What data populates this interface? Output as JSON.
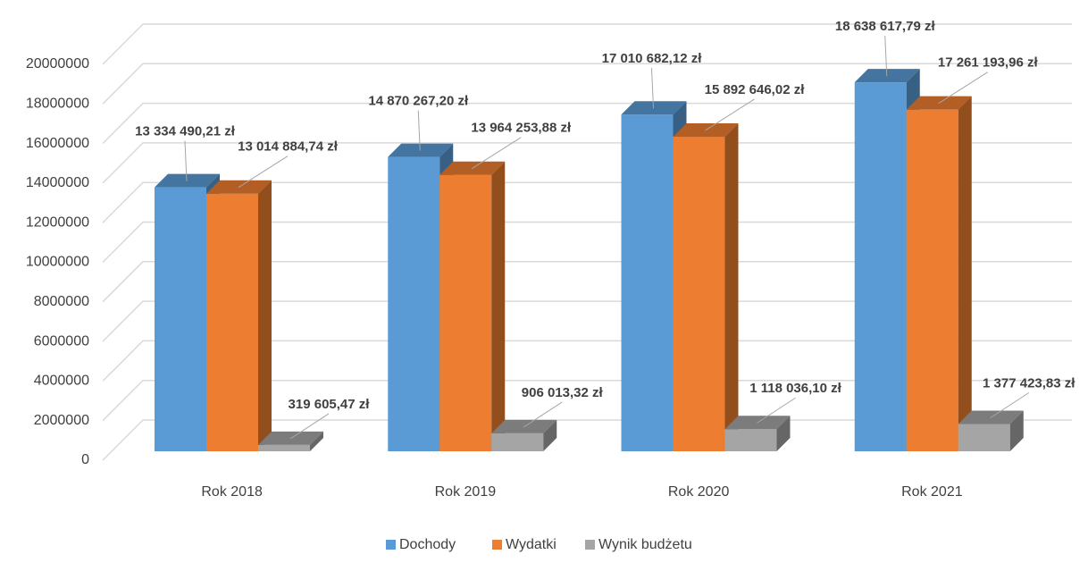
{
  "chart_data": {
    "type": "bar3d",
    "categories": [
      "Rok 2018",
      "Rok 2019",
      "Rok 2020",
      "Rok 2021"
    ],
    "series": [
      {
        "name": "Dochody",
        "color": "#5b9bd5",
        "values": [
          13334490.21,
          14870267.2,
          17010682.12,
          18638617.79
        ],
        "value_labels": [
          "13 334 490,21 zł",
          "14 870 267,20 zł",
          "17 010 682,12 zł",
          "18 638 617,79 zł"
        ]
      },
      {
        "name": "Wydatki",
        "color": "#ed7d31",
        "values": [
          13014884.74,
          13964253.88,
          15892646.02,
          17261193.96
        ],
        "value_labels": [
          "13 014 884,74 zł",
          "13 964 253,88 zł",
          "15 892 646,02 zł",
          "17 261 193,96 zł"
        ]
      },
      {
        "name": "Wynik budżetu",
        "color": "#a5a5a5",
        "values": [
          319605.47,
          906013.32,
          1118036.1,
          1377423.83
        ],
        "value_labels": [
          "319 605,47 zł",
          "906 013,32 zł",
          "1 118 036,10 zł",
          "1 377 423,83 zł"
        ]
      }
    ],
    "ylim": [
      0,
      20000000
    ],
    "yticks": [
      0,
      2000000,
      4000000,
      6000000,
      8000000,
      10000000,
      12000000,
      14000000,
      16000000,
      18000000,
      20000000
    ],
    "grid": true,
    "legend": "bottom"
  }
}
